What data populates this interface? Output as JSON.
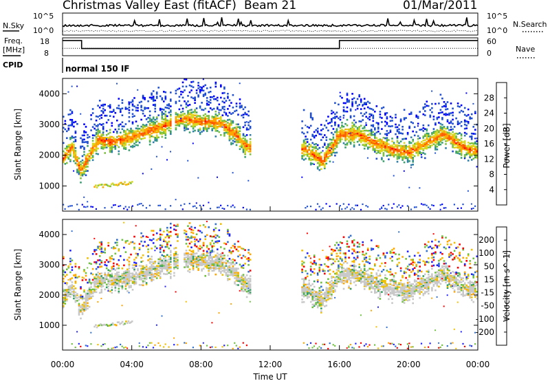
{
  "header": {
    "title": "Christmas Valley East (fitACF)",
    "beam": "Beam 21",
    "date": "01/Mar/2011"
  },
  "panels": {
    "nsky_label": "N.Sky",
    "nsearch_label": "N.Search",
    "freq_label_top": "Freq.",
    "freq_label_bottom": "[MHz]",
    "nave_label": "Nave",
    "cpid_label": "CPID",
    "cpid_value": "normal 150 IF",
    "noise_ticks_left": [
      "10^5",
      "10^0"
    ],
    "noise_ticks_right": [
      "10^5",
      "10^0"
    ],
    "freq_ticks": [
      "18",
      "8"
    ],
    "nave_ticks": [
      "60",
      "0"
    ]
  },
  "chart_data": [
    {
      "type": "line",
      "title": "",
      "series": [
        {
          "name": "N.Sky",
          "style": "solid"
        },
        {
          "name": "N.Search",
          "style": "dotted"
        }
      ],
      "xlim": [
        "00:00",
        "24:00"
      ],
      "ylim": [
        "10^0",
        "10^5"
      ],
      "y_scale": "log"
    },
    {
      "type": "line",
      "series": [
        {
          "name": "Freq.",
          "style": "solid",
          "unit": "MHz",
          "points": [
            [
              0,
              16.5
            ],
            [
              1.1,
              16.5
            ],
            [
              1.1,
              12.0
            ],
            [
              16.0,
              12.0
            ],
            [
              16.0,
              16.5
            ],
            [
              24,
              16.5
            ]
          ]
        },
        {
          "name": "Nave",
          "style": "dotted",
          "points": [
            [
              0,
              25
            ],
            [
              24,
              25
            ]
          ]
        }
      ],
      "xlim": [
        0,
        24
      ],
      "ylim_left": [
        8,
        18
      ],
      "ylim_right": [
        0,
        60
      ]
    },
    {
      "type": "heatmap",
      "ylabel": "Slant Range [km]",
      "xlabel": "",
      "y_ticks": [
        "1000",
        "2000",
        "3000",
        "4000"
      ],
      "ylim": [
        180,
        4500
      ],
      "colorbar": {
        "label": "Power [dB]",
        "ticks": [
          "28",
          "24",
          "20",
          "16",
          "12",
          "8",
          "4"
        ],
        "colors": [
          "#0000ff",
          "#1f4fd0",
          "#2f7fa8",
          "#3aa070",
          "#7cc040",
          "#d8d820",
          "#ffa500",
          "#ff5a00",
          "#ff0000"
        ]
      },
      "echo_band": {
        "times_h": [
          0.0,
          0.5,
          1.0,
          1.5,
          2.0,
          3.0,
          4.0,
          5.0,
          5.5,
          7.0,
          8.0,
          9.0,
          10.0,
          10.5,
          14.0,
          15.0,
          16.0,
          17.0,
          18.0,
          19.0,
          20.0,
          21.0,
          22.0,
          23.0,
          24.0
        ],
        "center_km": [
          1900,
          2300,
          1500,
          2000,
          2500,
          2450,
          2600,
          2800,
          2900,
          3200,
          3100,
          3050,
          2700,
          2300,
          2200,
          1800,
          2700,
          2700,
          2400,
          2200,
          2100,
          2400,
          2700,
          2300,
          2100
        ]
      }
    },
    {
      "type": "heatmap",
      "ylabel": "Slant Range [km]",
      "xlabel": "Time UT",
      "x_ticks": [
        "00:00",
        "04:00",
        "08:00",
        "12:00",
        "16:00",
        "20:00",
        "00:00"
      ],
      "y_ticks": [
        "1000",
        "2000",
        "3000",
        "4000"
      ],
      "ylim": [
        180,
        4500
      ],
      "colorbar": {
        "label": "Velocity [m s^-1]",
        "ticks": [
          "200",
          "100",
          "50",
          "15",
          "-15",
          "-50",
          "-100",
          "-200"
        ],
        "colors": [
          "#2020ff",
          "#2f6fd0",
          "#2f9f60",
          "#70c040",
          "#c8c8c8",
          "#f0c000",
          "#ffa500",
          "#ff6000",
          "#ff0000"
        ]
      }
    }
  ]
}
